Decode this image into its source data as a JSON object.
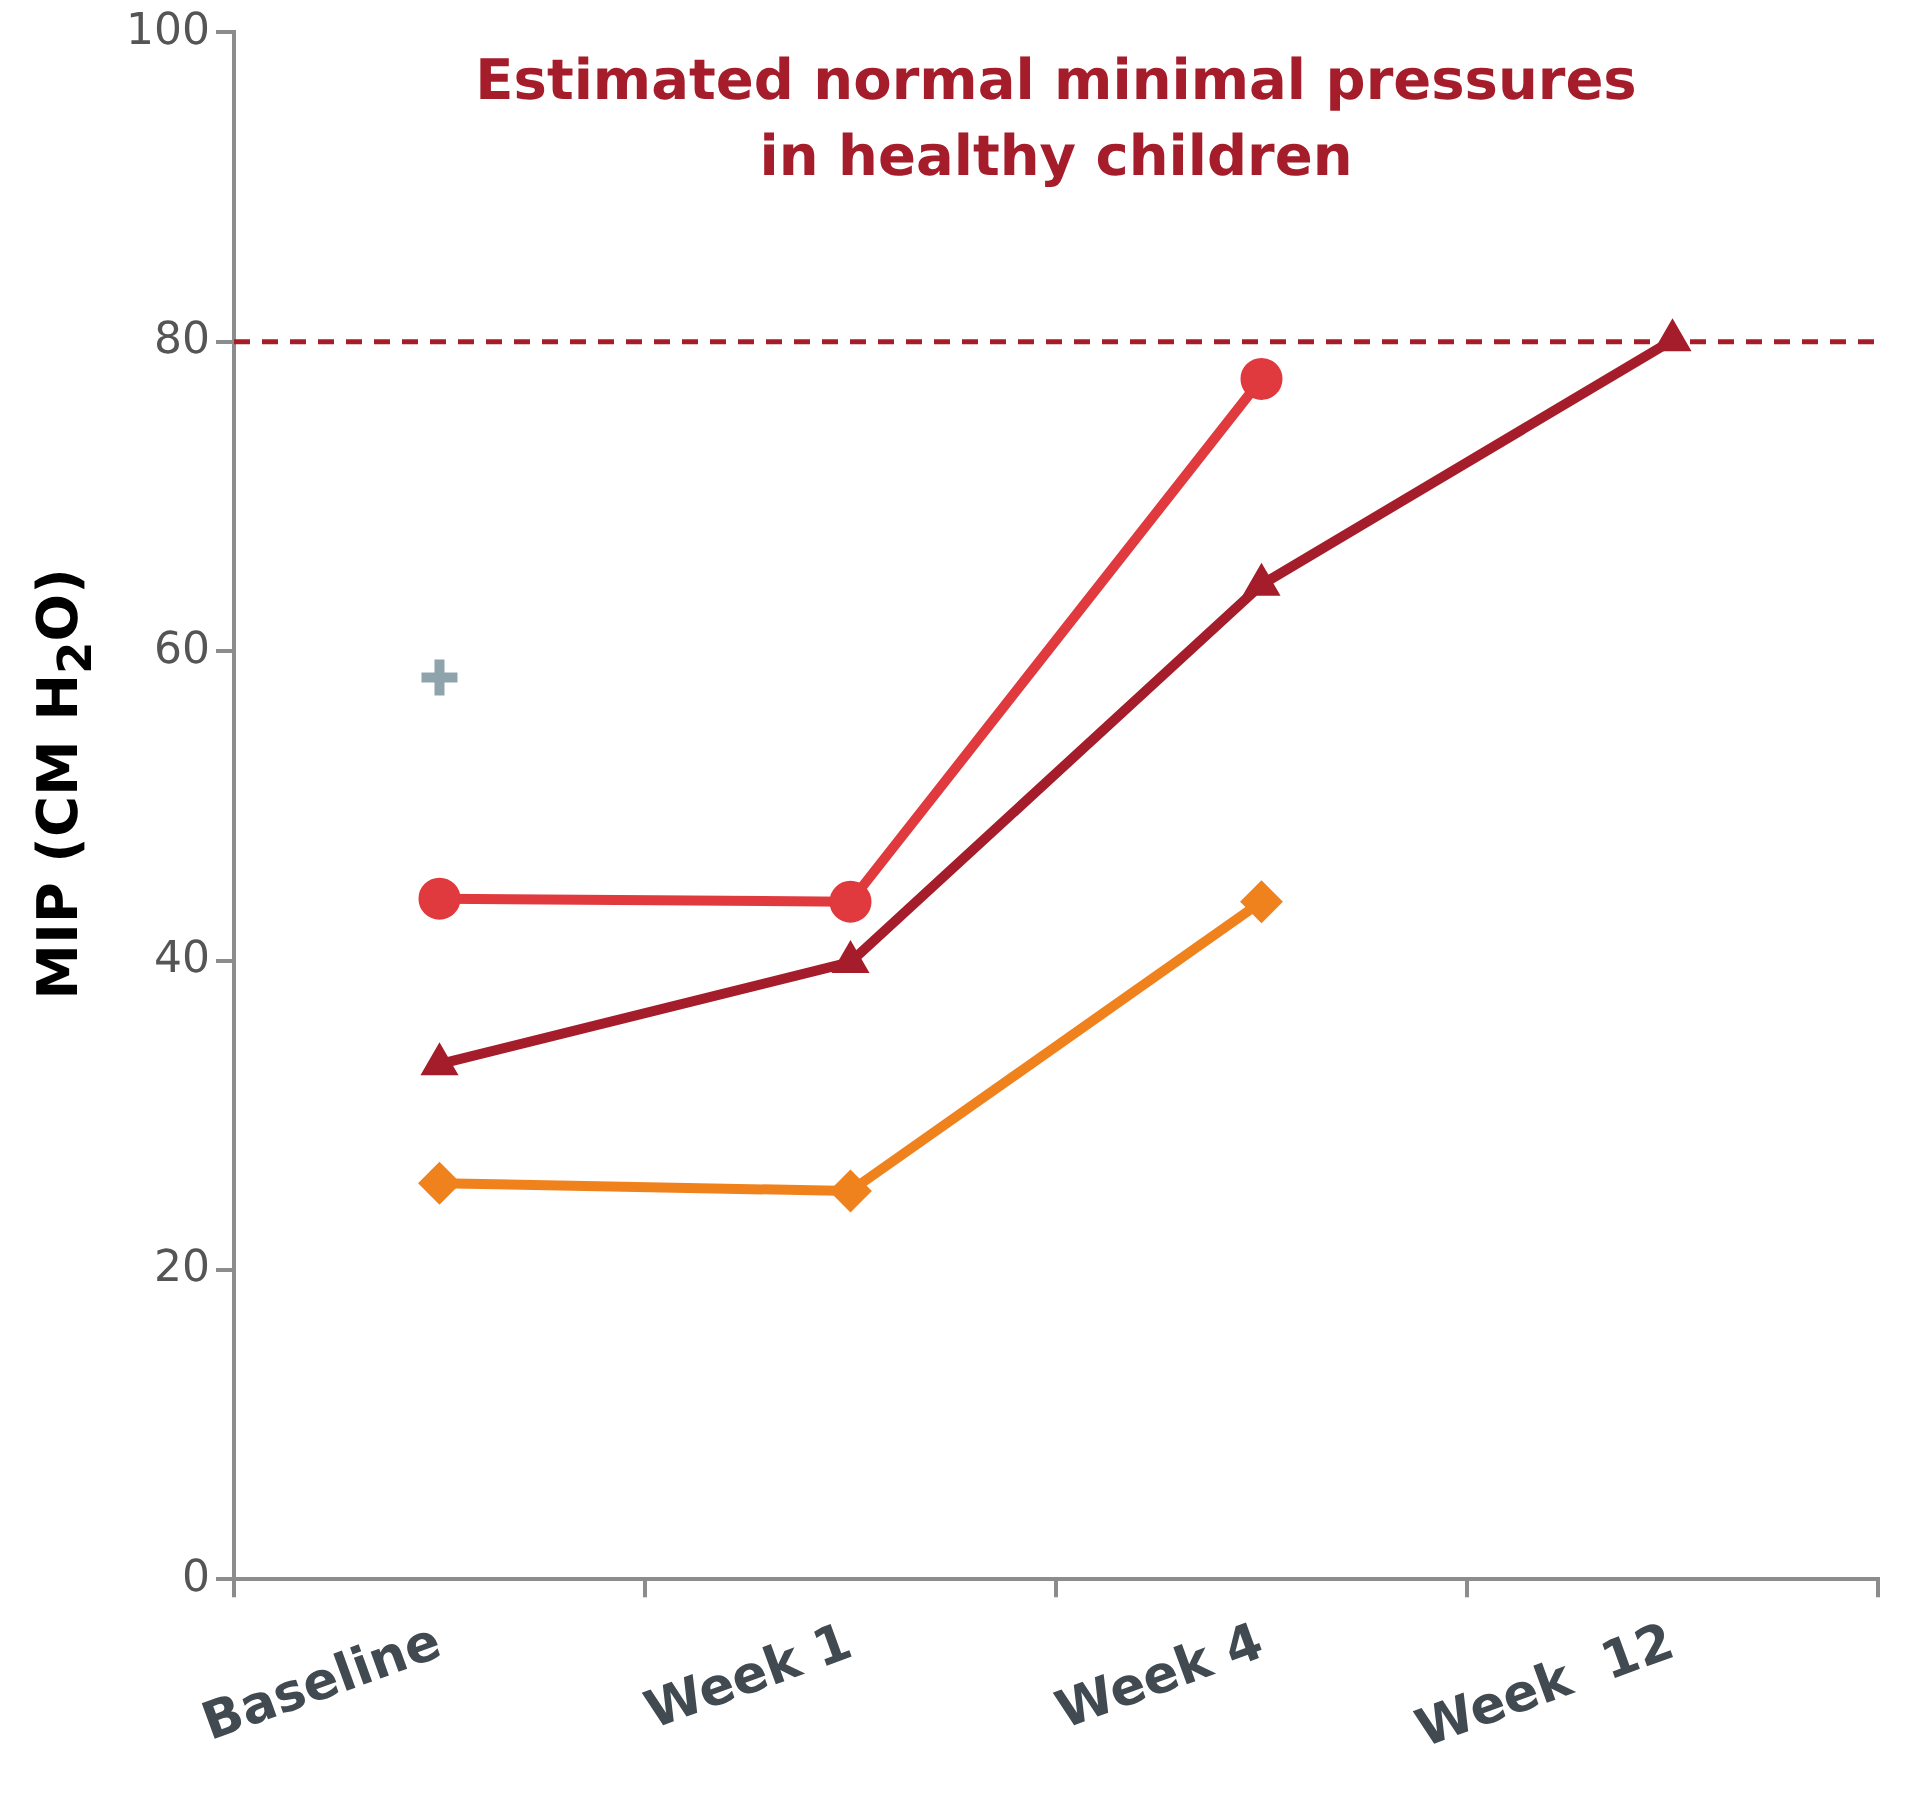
{
  "chart_data": {
    "type": "line",
    "ylabel": "MIP (CM H$_{2}$O)",
    "categories": [
      "Baseline",
      "Week 1",
      "Week 4",
      "Week  12"
    ],
    "ylim": [
      0,
      100
    ],
    "yticks": [
      0,
      20,
      40,
      60,
      80,
      100
    ],
    "grid": false,
    "legend": false,
    "line_style": "solid",
    "series": [
      {
        "marker": "circle",
        "color": "#e0393e",
        "values": [
          44.0,
          43.8,
          77.6,
          null
        ]
      },
      {
        "marker": "triangle",
        "color": "#a51d2a",
        "values": [
          33.3,
          39.9,
          64.3,
          80.1
        ]
      },
      {
        "marker": "diamond",
        "color": "#f0821e",
        "values": [
          25.6,
          25.1,
          43.8,
          null
        ]
      },
      {
        "type": "scatter",
        "marker": "cross",
        "color": "#8fa3ad",
        "values": [
          58.3,
          null,
          null,
          null
        ]
      }
    ],
    "ref_lines": [
      {
        "axis": "y",
        "value": 80,
        "label": "Estimated normal minimal pressures in healthy children",
        "color": "#a51d2a",
        "line_style": "dashed"
      }
    ]
  }
}
